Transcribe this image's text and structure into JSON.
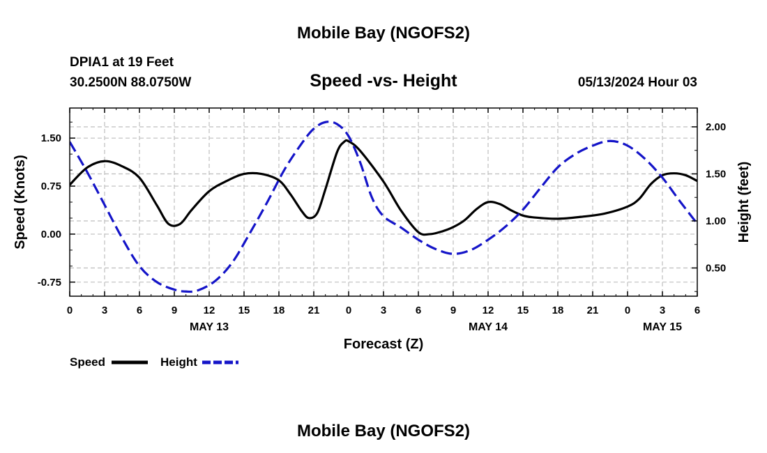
{
  "page": {
    "title_top": "Mobile Bay (NGOFS2)",
    "title_bottom": "Mobile Bay (NGOFS2)",
    "station_line": "DPIA1 at 19 Feet",
    "coords_line": "30.2500N  88.0750W",
    "chart_title": "Speed -vs- Height",
    "date_line": "05/13/2024 Hour 03"
  },
  "colors": {
    "speed": "#000000",
    "height": "#1414c8",
    "grid": "#bdbdbd"
  },
  "chart_data": {
    "type": "line",
    "title": "Speed -vs- Height",
    "xlabel": "Forecast (Z)",
    "ylabel": "Speed (Knots)",
    "y2label": "Height (feet)",
    "x_unit": "hours from 00Z May 13",
    "xlim": [
      0,
      54
    ],
    "ylim": [
      -0.97,
      1.97
    ],
    "y2lim": [
      0.2,
      2.2
    ],
    "x_ticks": [
      {
        "x": 0,
        "label": "0"
      },
      {
        "x": 3,
        "label": "3"
      },
      {
        "x": 6,
        "label": "6"
      },
      {
        "x": 9,
        "label": "9"
      },
      {
        "x": 12,
        "label": "12"
      },
      {
        "x": 15,
        "label": "15"
      },
      {
        "x": 18,
        "label": "18"
      },
      {
        "x": 21,
        "label": "21"
      },
      {
        "x": 24,
        "label": "0"
      },
      {
        "x": 27,
        "label": "3"
      },
      {
        "x": 30,
        "label": "6"
      },
      {
        "x": 33,
        "label": "9"
      },
      {
        "x": 36,
        "label": "12"
      },
      {
        "x": 39,
        "label": "15"
      },
      {
        "x": 42,
        "label": "18"
      },
      {
        "x": 45,
        "label": "21"
      },
      {
        "x": 48,
        "label": "0"
      },
      {
        "x": 51,
        "label": "3"
      },
      {
        "x": 54,
        "label": "6"
      }
    ],
    "date_labels": [
      {
        "x": 12,
        "label": "MAY 13"
      },
      {
        "x": 36,
        "label": "MAY 14"
      },
      {
        "x": 51,
        "label": "MAY 15"
      }
    ],
    "y_ticks": [
      {
        "v": 1.5,
        "label": "1.50"
      },
      {
        "v": 0.75,
        "label": "0.75"
      },
      {
        "v": 0.0,
        "label": "0.00"
      },
      {
        "v": -0.75,
        "label": "-0.75"
      }
    ],
    "y2_ticks": [
      {
        "v": 2.0,
        "label": "2.00"
      },
      {
        "v": 1.5,
        "label": "1.50"
      },
      {
        "v": 1.0,
        "label": "1.00"
      },
      {
        "v": 0.5,
        "label": "0.50"
      }
    ],
    "grid": true,
    "legend": {
      "placement": "bottom-left",
      "entries": [
        "Speed",
        "Height"
      ]
    },
    "series": [
      {
        "name": "Speed",
        "axis": "left",
        "style": "solid",
        "x": [
          0,
          1.5,
          3,
          4.5,
          6,
          7.5,
          8.5,
          9.5,
          10.5,
          12,
          13.5,
          15,
          16.5,
          18,
          19,
          20,
          20.6,
          21.3,
          22,
          23,
          23.6,
          24,
          25,
          27,
          28.5,
          30,
          31,
          32,
          33,
          34,
          35,
          36,
          37,
          38,
          39,
          40,
          42,
          44,
          46,
          48,
          49,
          50,
          51,
          52,
          53,
          54
        ],
        "values": [
          0.77,
          1.04,
          1.14,
          1.06,
          0.88,
          0.45,
          0.16,
          0.16,
          0.38,
          0.67,
          0.83,
          0.94,
          0.94,
          0.84,
          0.62,
          0.35,
          0.25,
          0.33,
          0.7,
          1.28,
          1.44,
          1.45,
          1.3,
          0.82,
          0.37,
          0.03,
          0.0,
          0.04,
          0.11,
          0.22,
          0.39,
          0.5,
          0.47,
          0.37,
          0.29,
          0.26,
          0.24,
          0.27,
          0.32,
          0.43,
          0.55,
          0.78,
          0.92,
          0.95,
          0.92,
          0.83
        ]
      },
      {
        "name": "Height",
        "axis": "right",
        "style": "dashed",
        "x": [
          0,
          1.5,
          3,
          4.5,
          6,
          7.5,
          9,
          10,
          11,
          12.5,
          14,
          15.5,
          17,
          18.5,
          20,
          21,
          22,
          23,
          24,
          25,
          26,
          27,
          28.5,
          30,
          31.5,
          33,
          34.5,
          36,
          37.5,
          39,
          40.5,
          42,
          43.5,
          45,
          46.5,
          48,
          49.5,
          51,
          52.5,
          54
        ],
        "values": [
          1.84,
          1.52,
          1.17,
          0.82,
          0.52,
          0.35,
          0.27,
          0.25,
          0.26,
          0.36,
          0.56,
          0.87,
          1.2,
          1.55,
          1.83,
          1.98,
          2.05,
          2.03,
          1.9,
          1.62,
          1.25,
          1.05,
          0.93,
          0.8,
          0.7,
          0.65,
          0.69,
          0.8,
          0.94,
          1.12,
          1.35,
          1.57,
          1.71,
          1.8,
          1.85,
          1.8,
          1.66,
          1.46,
          1.21,
          0.97
        ]
      }
    ]
  }
}
